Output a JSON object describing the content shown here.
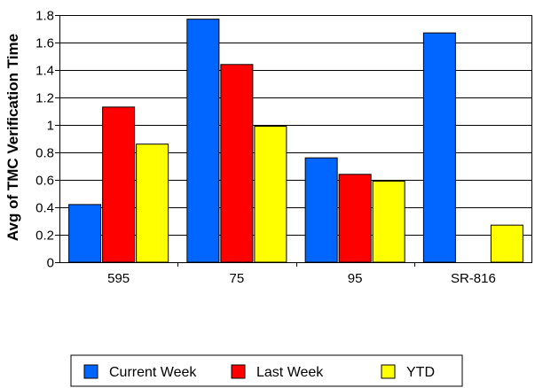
{
  "chart_data": {
    "type": "bar",
    "title": "",
    "xlabel": "",
    "ylabel": "Avg of TMC Verification Time",
    "categories": [
      "595",
      "75",
      "95",
      "SR-816"
    ],
    "series": [
      {
        "name": "Current Week",
        "color": "#0066ff",
        "values": [
          0.42,
          1.77,
          0.76,
          1.67
        ]
      },
      {
        "name": "Last Week",
        "color": "#ff0000",
        "values": [
          1.13,
          1.44,
          0.64,
          0
        ]
      },
      {
        "name": "YTD",
        "color": "#ffff00",
        "values": [
          0.86,
          0.99,
          0.59,
          0.27
        ]
      }
    ],
    "ylim": [
      0,
      1.8
    ],
    "yticks": [
      "0",
      "0.2",
      "0.4",
      "0.6",
      "0.8",
      "1",
      "1.2",
      "1.4",
      "1.6",
      "1.8"
    ],
    "grid": true,
    "legend_position": "bottom"
  }
}
